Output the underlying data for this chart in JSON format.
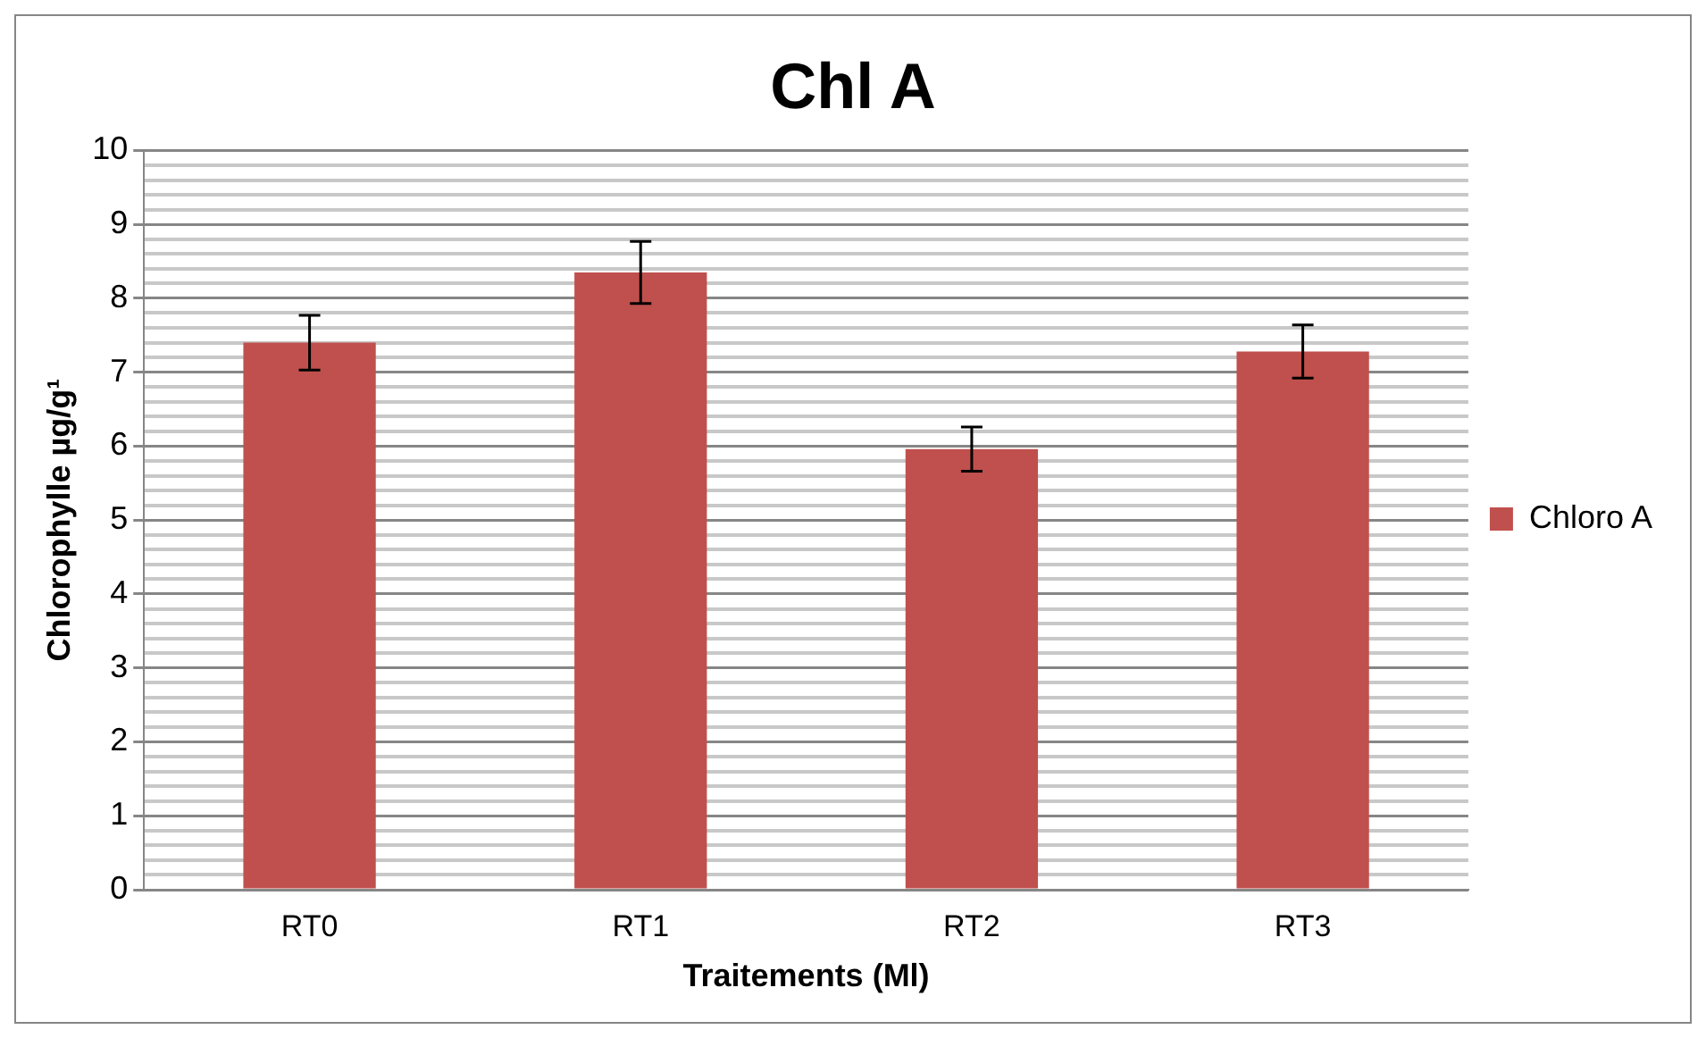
{
  "chart_data": {
    "type": "bar",
    "title": "Chl A",
    "xlabel": "Traitements (Ml)",
    "ylabel": "Chlorophylle µg/g¹",
    "categories": [
      "RT0",
      "RT1",
      "RT2",
      "RT3"
    ],
    "series": [
      {
        "name": "Chloro A",
        "color": "#c0504d",
        "values": [
          7.4,
          8.35,
          5.96,
          7.28
        ],
        "errors": [
          0.37,
          0.42,
          0.3,
          0.36
        ]
      }
    ],
    "ylim": [
      0,
      10
    ],
    "yticks": [
      0,
      {
        "value": 0.2,
        "label": null
      },
      {
        "value": 0.4,
        "label": null
      },
      {
        "value": 0.6,
        "label": null
      },
      {
        "value": 0.8,
        "label": null
      },
      1,
      {
        "value": 1.2,
        "label": null
      },
      {
        "value": 1.4,
        "label": null
      },
      {
        "value": 1.6,
        "label": null
      },
      {
        "value": 1.8,
        "label": null
      },
      2,
      {
        "value": 2.2,
        "label": null
      },
      {
        "value": 2.4,
        "label": null
      },
      {
        "value": 2.6,
        "label": null
      },
      {
        "value": 2.8,
        "label": null
      },
      3,
      {
        "value": 3.2,
        "label": null
      },
      {
        "value": 3.4,
        "label": null
      },
      {
        "value": 3.6,
        "label": null
      },
      {
        "value": 3.8,
        "label": null
      },
      4,
      {
        "value": 4.2,
        "label": null
      },
      {
        "value": 4.4,
        "label": null
      },
      {
        "value": 4.6,
        "label": null
      },
      {
        "value": 4.8,
        "label": null
      },
      5,
      {
        "value": 5.2,
        "label": null
      },
      {
        "value": 5.4,
        "label": null
      },
      {
        "value": 5.6,
        "label": null
      },
      {
        "value": 5.8,
        "label": null
      },
      6,
      {
        "value": 6.2,
        "label": null
      },
      {
        "value": 6.4,
        "label": null
      },
      {
        "value": 6.6,
        "label": null
      },
      {
        "value": 6.8,
        "label": null
      },
      7,
      {
        "value": 7.2,
        "label": null
      },
      {
        "value": 7.4,
        "label": null
      },
      {
        "value": 7.6,
        "label": null
      },
      {
        "value": 7.8,
        "label": null
      },
      8,
      {
        "value": 8.2,
        "label": null
      },
      {
        "value": 8.4,
        "label": null
      },
      {
        "value": 8.6,
        "label": null
      },
      {
        "value": 8.8,
        "label": null
      },
      9,
      {
        "value": 9.2,
        "label": null
      },
      {
        "value": 9.4,
        "label": null
      },
      {
        "value": 9.6,
        "label": null
      },
      {
        "value": 9.8,
        "label": null
      },
      10
    ],
    "grid": "y",
    "legend": "right"
  }
}
